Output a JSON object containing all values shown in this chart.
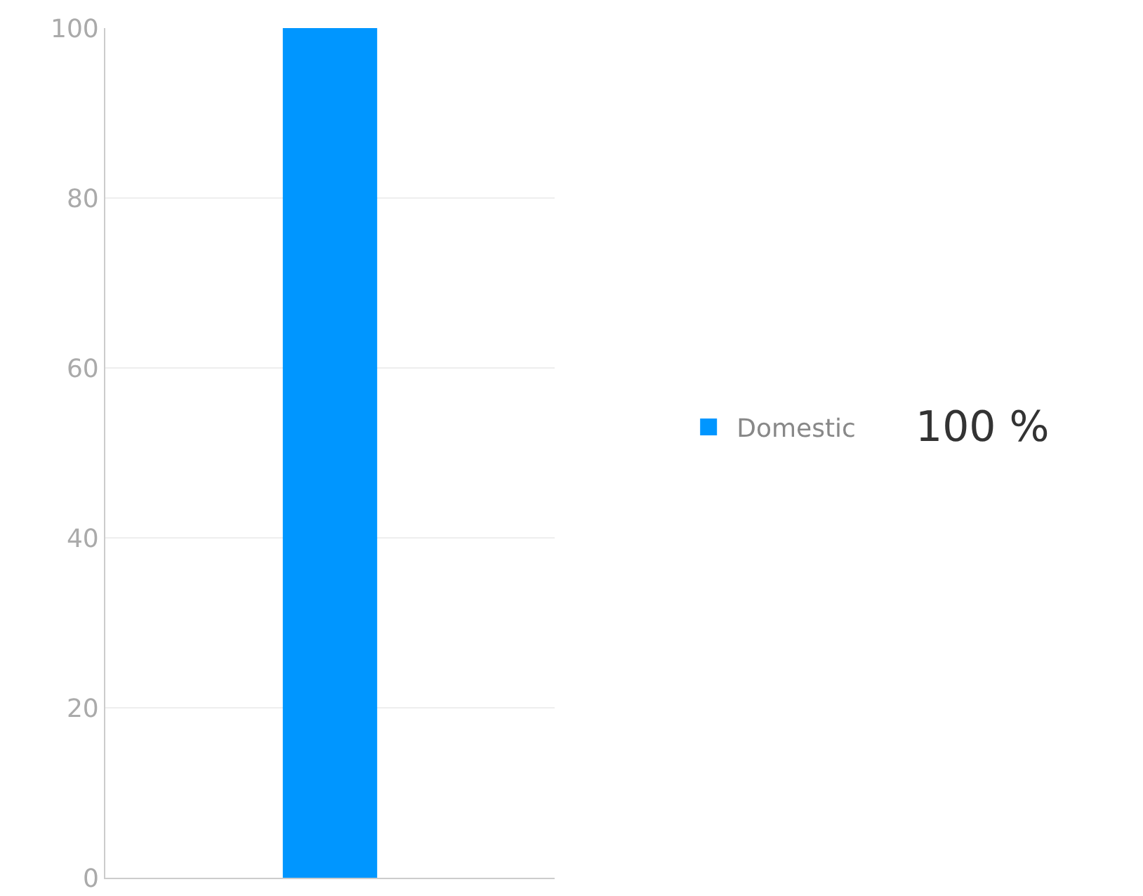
{
  "chart_data": {
    "type": "bar",
    "categories": [
      null
    ],
    "series": [
      {
        "name": "Domestic",
        "color": "#0096ff",
        "values": [
          100
        ]
      }
    ],
    "annotations": [
      "100 %"
    ],
    "ylim": [
      0,
      100
    ],
    "yticks": [
      0,
      20,
      40,
      60,
      80,
      100
    ],
    "grid": "y",
    "legend": "right"
  }
}
